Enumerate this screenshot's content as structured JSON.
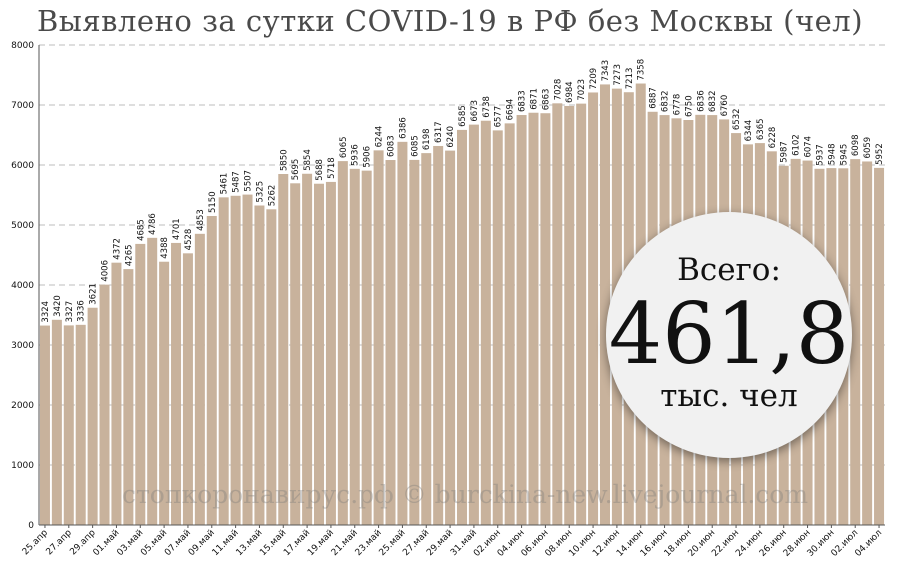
{
  "title": "Выявлено за сутки COVID-19 в РФ без Москвы (чел)",
  "watermark": "стопкоронавирус.рф © burckina-new.livejournal.com",
  "total": {
    "label": "Всего:",
    "value": "461,8",
    "unit": "тыс. чел"
  },
  "colors": {
    "bar": "#c8b29c",
    "grid": "#bdbdbd",
    "axis": "#555555",
    "text": "#111111"
  },
  "chart_data": {
    "type": "bar",
    "ylim": [
      0,
      8000
    ],
    "yticks": [
      0,
      1000,
      2000,
      3000,
      4000,
      5000,
      6000,
      7000,
      8000
    ],
    "grid": true,
    "xtick_labels": [
      "25.апр",
      "27.апр",
      "29.апр",
      "01.май",
      "03.май",
      "05.май",
      "07.май",
      "09.май",
      "11.май",
      "13.май",
      "15.май",
      "17.май",
      "19.май",
      "21.май",
      "23.май",
      "25.май",
      "27.май",
      "29.май",
      "31.май",
      "02.июн",
      "04.июн",
      "06.июн",
      "08.июн",
      "10.июн",
      "12.июн",
      "14.июн",
      "16.июн",
      "18.июн",
      "20.июн",
      "22.июн",
      "24.июн",
      "26.июн",
      "28.июн",
      "30.июн",
      "02.июл",
      "04.июл"
    ],
    "values": [
      3324,
      3420,
      3327,
      3336,
      3621,
      4006,
      4372,
      4265,
      4685,
      4786,
      4388,
      4701,
      4528,
      4853,
      5150,
      5461,
      5487,
      5507,
      5325,
      5262,
      5850,
      5695,
      5854,
      5688,
      5718,
      6065,
      5936,
      5906,
      6244,
      6083,
      6386,
      6085,
      6198,
      6317,
      6240,
      6585,
      6673,
      6738,
      6577,
      6694,
      6833,
      6871,
      6863,
      7028,
      6984,
      7023,
      7209,
      7343,
      7273,
      7213,
      7358,
      6887,
      6832,
      6778,
      6750,
      6836,
      6832,
      6760,
      6532,
      6344,
      6365,
      6228,
      5987,
      6102,
      6074,
      5937,
      5948,
      5945,
      6098,
      6059,
      5952
    ]
  }
}
